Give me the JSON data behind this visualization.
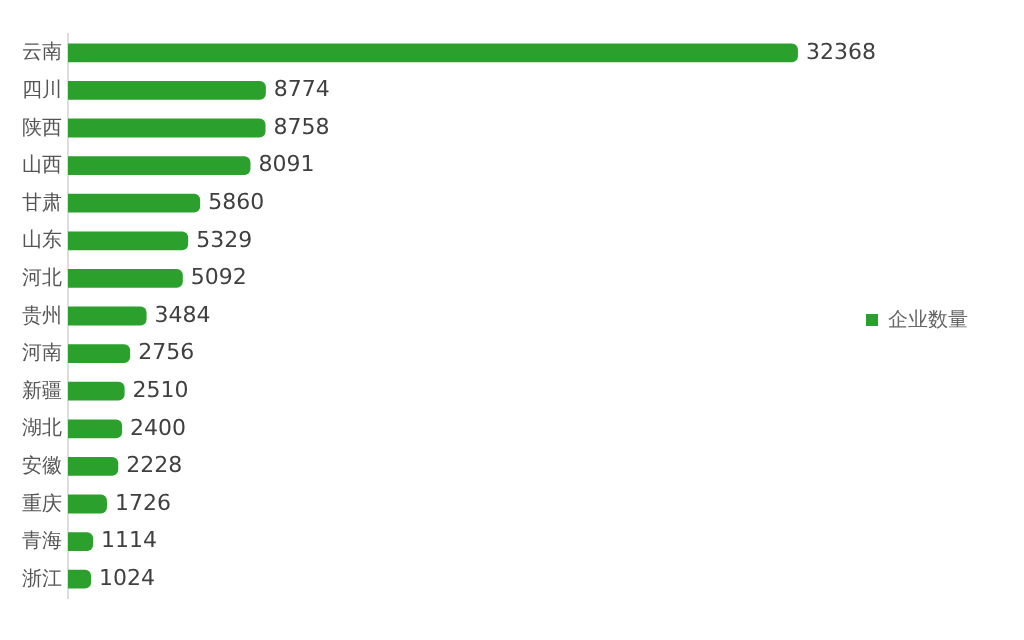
{
  "chart_data": {
    "type": "bar",
    "orientation": "horizontal",
    "categories": [
      "云南",
      "四川",
      "陕西",
      "山西",
      "甘肃",
      "山东",
      "河北",
      "贵州",
      "河南",
      "新疆",
      "湖北",
      "安徽",
      "重庆",
      "青海",
      "浙江"
    ],
    "series": [
      {
        "name": "企业数量",
        "color": "#2ca02c",
        "values": [
          32368,
          8774,
          8758,
          8091,
          5860,
          5329,
          5092,
          3484,
          2756,
          2510,
          2400,
          2228,
          1726,
          1114,
          1024
        ]
      }
    ],
    "data_labels": true,
    "legend": "right",
    "grid": false
  }
}
